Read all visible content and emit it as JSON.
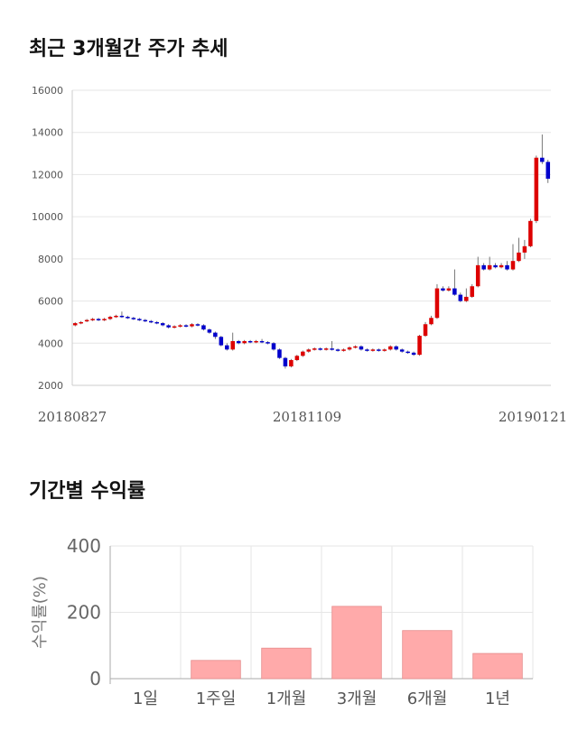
{
  "sections": {
    "price_title": "최근 3개월간 주가 추세",
    "returns_title": "기간별 수익률"
  },
  "chart_data": [
    {
      "type": "candlestick",
      "title": "최근 3개월간 주가 추세",
      "ylim": [
        2000,
        16000
      ],
      "y_ticks": [
        2000,
        4000,
        6000,
        8000,
        10000,
        12000,
        14000,
        16000
      ],
      "x_tick_labels": [
        "20180827",
        "20181109",
        "20190121"
      ],
      "grid": true,
      "up_color": "#dd0000",
      "down_color": "#0000cc",
      "candles": [
        [
          4850,
          4950,
          4800,
          5000
        ],
        [
          4950,
          5000,
          4900,
          5050
        ],
        [
          5050,
          5100,
          5000,
          5150
        ],
        [
          5100,
          5150,
          5050,
          5200
        ],
        [
          5150,
          5100,
          5050,
          5200
        ],
        [
          5100,
          5150,
          5050,
          5200
        ],
        [
          5150,
          5250,
          5100,
          5300
        ],
        [
          5250,
          5300,
          5200,
          5350
        ],
        [
          5300,
          5250,
          5200,
          5500
        ],
        [
          5250,
          5200,
          5150,
          5300
        ],
        [
          5200,
          5150,
          5100,
          5250
        ],
        [
          5150,
          5100,
          5050,
          5200
        ],
        [
          5100,
          5050,
          5000,
          5150
        ],
        [
          5050,
          5000,
          4950,
          5100
        ],
        [
          5000,
          4950,
          4900,
          5050
        ],
        [
          4950,
          4850,
          4800,
          5000
        ],
        [
          4850,
          4750,
          4700,
          4900
        ],
        [
          4750,
          4800,
          4700,
          4850
        ],
        [
          4800,
          4850,
          4750,
          4900
        ],
        [
          4850,
          4800,
          4750,
          4900
        ],
        [
          4800,
          4900,
          4750,
          4950
        ],
        [
          4900,
          4850,
          4800,
          4950
        ],
        [
          4850,
          4650,
          4600,
          4900
        ],
        [
          4650,
          4500,
          4450,
          4700
        ],
        [
          4500,
          4300,
          4200,
          4550
        ],
        [
          4300,
          3900,
          3850,
          4350
        ],
        [
          3900,
          3700,
          3650,
          4000
        ],
        [
          3700,
          4100,
          3650,
          4500
        ],
        [
          4100,
          4000,
          3950,
          4150
        ],
        [
          4000,
          4100,
          3950,
          4150
        ],
        [
          4100,
          4050,
          4000,
          4150
        ],
        [
          4050,
          4100,
          4000,
          4150
        ],
        [
          4100,
          4050,
          4000,
          4200
        ],
        [
          4050,
          4000,
          3950,
          4100
        ],
        [
          4000,
          3700,
          3650,
          4050
        ],
        [
          3700,
          3300,
          3250,
          3750
        ],
        [
          3300,
          2900,
          2800,
          3350
        ],
        [
          2900,
          3200,
          2850,
          3250
        ],
        [
          3200,
          3400,
          3150,
          3450
        ],
        [
          3400,
          3600,
          3350,
          3650
        ],
        [
          3600,
          3700,
          3550,
          3750
        ],
        [
          3700,
          3750,
          3650,
          3800
        ],
        [
          3750,
          3700,
          3650,
          3800
        ],
        [
          3700,
          3750,
          3650,
          3800
        ],
        [
          3750,
          3700,
          3650,
          4100
        ],
        [
          3700,
          3650,
          3600,
          3750
        ],
        [
          3650,
          3700,
          3600,
          3750
        ],
        [
          3700,
          3800,
          3650,
          3850
        ],
        [
          3800,
          3850,
          3750,
          3900
        ],
        [
          3850,
          3700,
          3650,
          3900
        ],
        [
          3700,
          3650,
          3600,
          3750
        ],
        [
          3650,
          3700,
          3600,
          3750
        ],
        [
          3700,
          3650,
          3600,
          3750
        ],
        [
          3650,
          3700,
          3600,
          3750
        ],
        [
          3700,
          3850,
          3650,
          3900
        ],
        [
          3850,
          3700,
          3650,
          3900
        ],
        [
          3700,
          3600,
          3550,
          3750
        ],
        [
          3600,
          3550,
          3500,
          3650
        ],
        [
          3550,
          3450,
          3400,
          3600
        ],
        [
          3450,
          4350,
          3400,
          4400
        ],
        [
          4350,
          4900,
          4300,
          5000
        ],
        [
          4900,
          5200,
          4850,
          5300
        ],
        [
          5200,
          6600,
          5150,
          6800
        ],
        [
          6600,
          6500,
          6450,
          6700
        ],
        [
          6500,
          6600,
          6450,
          6700
        ],
        [
          6600,
          6300,
          6250,
          7500
        ],
        [
          6300,
          6000,
          5950,
          6400
        ],
        [
          6000,
          6200,
          5950,
          6600
        ],
        [
          6200,
          6700,
          6150,
          6800
        ],
        [
          6700,
          7700,
          6650,
          8100
        ],
        [
          7700,
          7500,
          7450,
          7800
        ],
        [
          7500,
          7700,
          7450,
          8100
        ],
        [
          7700,
          7600,
          7550,
          7800
        ],
        [
          7600,
          7700,
          7550,
          7800
        ],
        [
          7700,
          7500,
          7450,
          7900
        ],
        [
          7500,
          7900,
          7450,
          8700
        ],
        [
          7900,
          8300,
          7850,
          9000
        ],
        [
          8300,
          8600,
          8000,
          8900
        ],
        [
          8600,
          9800,
          8550,
          9900
        ],
        [
          9800,
          12800,
          9700,
          12900
        ],
        [
          12800,
          12600,
          12500,
          13900
        ],
        [
          12600,
          11800,
          11600,
          12700
        ]
      ]
    },
    {
      "type": "bar",
      "title": "기간별 수익률",
      "ylabel": "수익률(%)",
      "ylim": [
        0,
        400
      ],
      "y_ticks": [
        0,
        200,
        400
      ],
      "categories": [
        "1일",
        "1주일",
        "1개월",
        "3개월",
        "6개월",
        "1년"
      ],
      "values": [
        0,
        55,
        92,
        218,
        145,
        76
      ],
      "bar_color": "#ffaaaa",
      "grid": true
    }
  ]
}
